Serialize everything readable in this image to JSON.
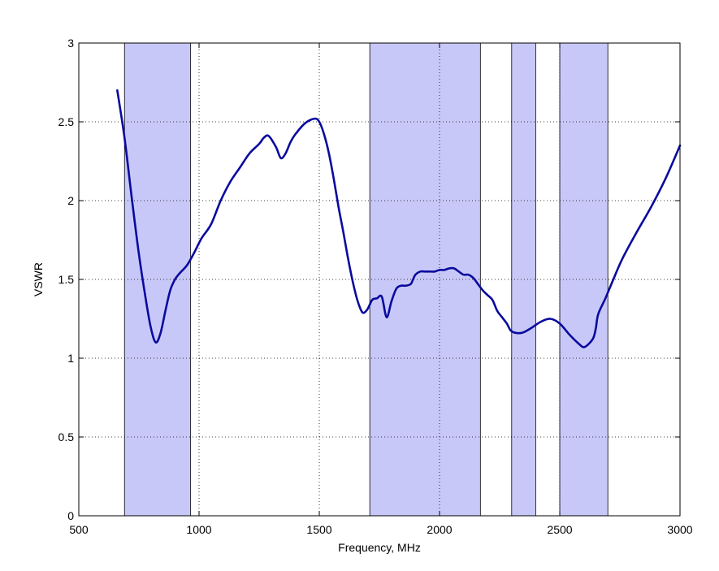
{
  "chart_data": {
    "type": "line",
    "title": "",
    "xlabel": "Frequency, MHz",
    "ylabel": "VSWR",
    "xlim": [
      500,
      3000
    ],
    "ylim": [
      0,
      3
    ],
    "xticks": [
      500,
      1000,
      1500,
      2000,
      2500,
      3000
    ],
    "yticks": [
      0,
      0.5,
      1,
      1.5,
      2,
      2.5,
      3
    ],
    "xtick_labels": [
      "500",
      "1000",
      "1500",
      "2000",
      "2500",
      "3000"
    ],
    "ytick_labels": [
      "0",
      "0.5",
      "1",
      "1.5",
      "2",
      "2.5",
      "3"
    ],
    "grid": true,
    "grid_style": "dotted",
    "line_color": "#0a0a9e",
    "band_color": "#c8c8f8",
    "bands": [
      {
        "from": 690,
        "to": 965
      },
      {
        "from": 1710,
        "to": 2170
      },
      {
        "from": 2300,
        "to": 2400
      },
      {
        "from": 2500,
        "to": 2700
      }
    ],
    "series": [
      {
        "x": [
          660,
          690,
          720,
          750,
          780,
          800,
          820,
          840,
          860,
          880,
          900,
          920,
          950,
          980,
          1010,
          1050,
          1090,
          1130,
          1170,
          1210,
          1250,
          1270,
          1290,
          1320,
          1340,
          1360,
          1380,
          1400,
          1440,
          1480,
          1500,
          1520,
          1540,
          1560,
          1580,
          1600,
          1620,
          1640,
          1660,
          1680,
          1700,
          1720,
          1740,
          1760,
          1780,
          1800,
          1820,
          1840,
          1860,
          1880,
          1890,
          1900,
          1920,
          1940,
          1960,
          1980,
          2000,
          2020,
          2040,
          2060,
          2080,
          2100,
          2120,
          2140,
          2160,
          2180,
          2200,
          2220,
          2240,
          2260,
          2280,
          2300,
          2340,
          2380,
          2420,
          2460,
          2500,
          2540,
          2580,
          2600,
          2620,
          2640,
          2650,
          2660,
          2690,
          2720,
          2760,
          2820,
          2880,
          2940,
          3000
        ],
        "y": [
          2.7,
          2.4,
          2.02,
          1.66,
          1.36,
          1.19,
          1.1,
          1.16,
          1.3,
          1.43,
          1.5,
          1.54,
          1.59,
          1.67,
          1.76,
          1.85,
          2.0,
          2.12,
          2.21,
          2.3,
          2.36,
          2.4,
          2.41,
          2.34,
          2.27,
          2.3,
          2.37,
          2.42,
          2.49,
          2.52,
          2.5,
          2.42,
          2.3,
          2.14,
          1.96,
          1.8,
          1.63,
          1.48,
          1.36,
          1.29,
          1.31,
          1.37,
          1.38,
          1.39,
          1.26,
          1.36,
          1.44,
          1.46,
          1.46,
          1.47,
          1.5,
          1.53,
          1.55,
          1.55,
          1.55,
          1.55,
          1.56,
          1.56,
          1.57,
          1.57,
          1.55,
          1.53,
          1.53,
          1.51,
          1.47,
          1.43,
          1.4,
          1.37,
          1.3,
          1.26,
          1.22,
          1.17,
          1.16,
          1.19,
          1.23,
          1.25,
          1.22,
          1.15,
          1.09,
          1.07,
          1.09,
          1.13,
          1.19,
          1.28,
          1.38,
          1.49,
          1.63,
          1.8,
          1.96,
          2.14,
          2.35
        ]
      }
    ]
  }
}
